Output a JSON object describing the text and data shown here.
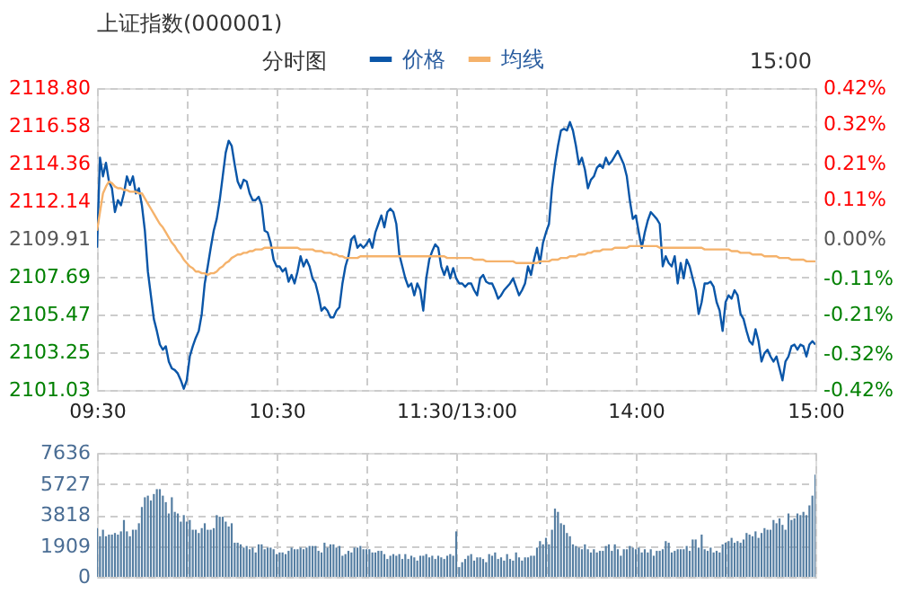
{
  "chart_data": [
    {
      "type": "line",
      "title": "上证指数(000001)",
      "subtitle": "分时图",
      "annotations": [
        "15:00"
      ],
      "legend": "top",
      "grid": true,
      "categories": [
        "09:30",
        null,
        null,
        null,
        null,
        null,
        null,
        null,
        null,
        null,
        null,
        null,
        null,
        null,
        null,
        null,
        null,
        null,
        null,
        null,
        null,
        null,
        null,
        null,
        null,
        null,
        null,
        null,
        null,
        null,
        null,
        null,
        null,
        null,
        null,
        null,
        null,
        null,
        null,
        null,
        null,
        null,
        null,
        null,
        null,
        null,
        null,
        null,
        null,
        null,
        null,
        null,
        null,
        null,
        null,
        null,
        null,
        null,
        null,
        null,
        "10:30",
        null,
        null,
        null,
        null,
        null,
        null,
        null,
        null,
        null,
        null,
        null,
        null,
        null,
        null,
        null,
        null,
        null,
        null,
        null,
        null,
        null,
        null,
        null,
        null,
        null,
        null,
        null,
        null,
        null,
        null,
        null,
        null,
        null,
        null,
        null,
        null,
        null,
        null,
        null,
        null,
        null,
        null,
        null,
        null,
        null,
        null,
        null,
        null,
        null,
        null,
        null,
        null,
        null,
        null,
        null,
        null,
        null,
        null,
        null,
        "11:30/13:00",
        null,
        null,
        null,
        null,
        null,
        null,
        null,
        null,
        null,
        null,
        null,
        null,
        null,
        null,
        null,
        null,
        null,
        null,
        null,
        null,
        null,
        null,
        null,
        null,
        null,
        null,
        null,
        null,
        null,
        null,
        null,
        null,
        null,
        null,
        null,
        null,
        null,
        null,
        null,
        null,
        null,
        null,
        null,
        null,
        null,
        null,
        null,
        null,
        null,
        null,
        null,
        null,
        null,
        null,
        null,
        null,
        null,
        null,
        null,
        "14:00",
        null,
        null,
        null,
        null,
        null,
        null,
        null,
        null,
        null,
        null,
        null,
        null,
        null,
        null,
        null,
        null,
        null,
        null,
        null,
        null,
        null,
        null,
        null,
        null,
        null,
        null,
        null,
        null,
        null,
        null,
        null,
        null,
        null,
        null,
        null,
        null,
        null,
        null,
        null,
        null,
        null,
        null,
        null,
        null,
        null,
        null,
        null,
        null,
        null,
        null,
        null,
        null,
        null,
        null,
        null,
        null,
        null,
        null,
        null,
        "15:00"
      ],
      "ylim": [
        2101.03,
        2118.8
      ],
      "yticks": [
        2101.03,
        2103.25,
        2105.47,
        2107.69,
        2109.91,
        2112.14,
        2114.36,
        2116.58,
        {
          "value": 2118.8,
          "label": "2118.80"
        }
      ],
      "y2lim": [
        -0.42,
        0.42
      ],
      "y2ticks": [
        {
          "value": -0.42,
          "label": "-0.42%"
        },
        {
          "value": -0.32,
          "label": "-0.32%"
        },
        {
          "value": -0.21,
          "label": "-0.21%"
        },
        {
          "value": -0.11,
          "label": "-0.11%"
        },
        {
          "value": 0,
          "label": "0.00%"
        },
        {
          "value": 0.11,
          "label": "0.11%"
        },
        {
          "value": 0.21,
          "label": "0.21%"
        },
        {
          "value": 0.32,
          "label": "0.32%"
        },
        {
          "value": 0.42,
          "label": "0.42%"
        }
      ],
      "series": [
        {
          "name": "价格",
          "color": "#0a56a8",
          "values": [
            2109.4,
            2114.7,
            2113.6,
            2114.4,
            2113.3,
            2112.9,
            2111.5,
            2112.2,
            2111.9,
            2112.6,
            2113.6,
            2113.1,
            2113.6,
            2112.6,
            2112.9,
            2111.9,
            2110.4,
            2108.0,
            2106.6,
            2105.2,
            2104.5,
            2103.7,
            2103.4,
            2103.6,
            2102.7,
            2102.3,
            2102.2,
            2102.0,
            2101.6,
            2101.1,
            2101.6,
            2103.0,
            2103.6,
            2104.1,
            2104.5,
            2105.5,
            2107.3,
            2108.3,
            2109.4,
            2110.4,
            2111.1,
            2112.2,
            2113.6,
            2115.0,
            2115.7,
            2115.4,
            2114.3,
            2113.3,
            2112.9,
            2113.4,
            2113.3,
            2112.6,
            2112.2,
            2112.2,
            2112.4,
            2111.9,
            2110.4,
            2110.3,
            2109.7,
            2108.7,
            2108.3,
            2108.3,
            2108.0,
            2108.2,
            2107.4,
            2107.8,
            2107.3,
            2108.0,
            2108.9,
            2108.3,
            2108.7,
            2108.3,
            2107.6,
            2107.3,
            2106.6,
            2105.7,
            2105.9,
            2105.7,
            2105.3,
            2105.3,
            2105.7,
            2105.9,
            2107.3,
            2108.3,
            2108.9,
            2109.9,
            2110.1,
            2109.4,
            2109.6,
            2109.4,
            2109.6,
            2109.9,
            2109.4,
            2110.3,
            2110.8,
            2111.3,
            2110.6,
            2111.5,
            2111.7,
            2111.5,
            2110.8,
            2109.0,
            2108.3,
            2107.6,
            2107.1,
            2107.3,
            2106.6,
            2107.3,
            2106.9,
            2105.7,
            2107.6,
            2108.7,
            2109.2,
            2109.6,
            2109.4,
            2108.3,
            2107.8,
            2108.3,
            2107.6,
            2108.2,
            2107.6,
            2107.3,
            2107.3,
            2107.1,
            2107.3,
            2107.3,
            2106.9,
            2106.6,
            2107.6,
            2107.8,
            2107.4,
            2107.3,
            2107.3,
            2106.9,
            2106.4,
            2106.6,
            2106.9,
            2107.1,
            2107.3,
            2107.6,
            2107.1,
            2106.6,
            2106.9,
            2107.3,
            2108.3,
            2107.8,
            2108.7,
            2109.4,
            2108.5,
            2109.7,
            2110.3,
            2110.8,
            2112.9,
            2114.3,
            2115.4,
            2116.3,
            2116.4,
            2116.3,
            2116.8,
            2116.3,
            2115.4,
            2114.3,
            2114.7,
            2114.0,
            2112.9,
            2113.4,
            2113.6,
            2114.1,
            2114.3,
            2114.1,
            2114.7,
            2114.3,
            2114.5,
            2114.8,
            2115.1,
            2114.7,
            2114.3,
            2113.6,
            2112.2,
            2111.1,
            2111.3,
            2110.3,
            2109.4,
            2110.3,
            2111.0,
            2111.5,
            2111.3,
            2111.1,
            2110.8,
            2108.3,
            2108.9,
            2108.5,
            2108.3,
            2108.9,
            2107.3,
            2108.5,
            2107.6,
            2108.7,
            2108.3,
            2107.6,
            2106.9,
            2105.5,
            2106.2,
            2107.3,
            2107.3,
            2107.4,
            2107.1,
            2106.2,
            2105.7,
            2104.5,
            2106.2,
            2106.6,
            2106.4,
            2106.9,
            2106.6,
            2105.5,
            2105.2,
            2104.5,
            2103.9,
            2103.7,
            2104.6,
            2103.9,
            2102.7,
            2103.2,
            2103.4,
            2103.0,
            2102.7,
            2103.0,
            2102.3,
            2101.6,
            2102.7,
            2103.0,
            2103.6,
            2103.7,
            2103.4,
            2103.7,
            2103.6,
            2103.0,
            2103.7,
            2103.9,
            2103.7
          ]
        },
        {
          "name": "均线",
          "color": "#f5b26b",
          "values": [
            2110.4,
            2111.5,
            2112.6,
            2113.0,
            2113.3,
            2113.2,
            2113.0,
            2112.9,
            2112.9,
            2112.8,
            2112.8,
            2112.7,
            2112.7,
            2112.7,
            2112.6,
            2112.6,
            2112.3,
            2112.0,
            2111.7,
            2111.4,
            2111.1,
            2110.8,
            2110.6,
            2110.3,
            2110.0,
            2109.7,
            2109.5,
            2109.2,
            2109.0,
            2108.7,
            2108.5,
            2108.3,
            2108.2,
            2108.0,
            2108.0,
            2107.9,
            2107.9,
            2107.8,
            2107.9,
            2107.9,
            2108.0,
            2108.2,
            2108.3,
            2108.5,
            2108.6,
            2108.8,
            2108.9,
            2109.0,
            2109.0,
            2109.1,
            2109.1,
            2109.2,
            2109.2,
            2109.3,
            2109.3,
            2109.3,
            2109.4,
            2109.4,
            2109.4,
            2109.4,
            2109.4,
            2109.4,
            2109.4,
            2109.4,
            2109.4,
            2109.4,
            2109.4,
            2109.4,
            2109.3,
            2109.3,
            2109.3,
            2109.3,
            2109.3,
            2109.2,
            2109.2,
            2109.2,
            2109.1,
            2109.1,
            2109.1,
            2109.0,
            2109.0,
            2108.9,
            2108.9,
            2108.8,
            2108.8,
            2108.8,
            2108.8,
            2108.8,
            2108.9,
            2108.9,
            2108.9,
            2108.9,
            2108.9,
            2108.9,
            2108.9,
            2108.9,
            2108.9,
            2108.9,
            2108.9,
            2108.9,
            2108.9,
            2108.9,
            2108.9,
            2108.9,
            2108.9,
            2108.9,
            2108.9,
            2108.9,
            2108.9,
            2108.9,
            2108.9,
            2108.9,
            2108.9,
            2108.9,
            2108.9,
            2108.9,
            2108.9,
            2108.8,
            2108.8,
            2108.8,
            2108.8,
            2108.8,
            2108.8,
            2108.8,
            2108.8,
            2108.8,
            2108.7,
            2108.7,
            2108.7,
            2108.7,
            2108.6,
            2108.6,
            2108.6,
            2108.6,
            2108.6,
            2108.6,
            2108.6,
            2108.6,
            2108.6,
            2108.6,
            2108.5,
            2108.5,
            2108.5,
            2108.5,
            2108.5,
            2108.5,
            2108.5,
            2108.5,
            2108.6,
            2108.6,
            2108.6,
            2108.6,
            2108.7,
            2108.7,
            2108.7,
            2108.8,
            2108.8,
            2108.8,
            2108.9,
            2108.9,
            2108.9,
            2109.0,
            2109.0,
            2109.0,
            2109.1,
            2109.1,
            2109.2,
            2109.2,
            2109.2,
            2109.3,
            2109.3,
            2109.3,
            2109.3,
            2109.4,
            2109.4,
            2109.4,
            2109.4,
            2109.4,
            2109.5,
            2109.5,
            2109.5,
            2109.5,
            2109.5,
            2109.5,
            2109.5,
            2109.5,
            2109.5,
            2109.5,
            2109.4,
            2109.4,
            2109.4,
            2109.4,
            2109.4,
            2109.4,
            2109.4,
            2109.4,
            2109.4,
            2109.4,
            2109.4,
            2109.4,
            2109.4,
            2109.4,
            2109.4,
            2109.3,
            2109.3,
            2109.3,
            2109.3,
            2109.3,
            2109.3,
            2109.3,
            2109.3,
            2109.3,
            2109.2,
            2109.2,
            2109.2,
            2109.1,
            2109.1,
            2109.1,
            2109.1,
            2109.0,
            2109.0,
            2109.0,
            2109.0,
            2108.9,
            2108.9,
            2108.9,
            2108.9,
            2108.9,
            2108.8,
            2108.8,
            2108.8,
            2108.8,
            2108.7,
            2108.7,
            2108.7,
            2108.7,
            2108.7,
            2108.6,
            2108.6,
            2108.6,
            2108.6
          ]
        }
      ]
    },
    {
      "type": "bar",
      "grid": true,
      "tick_labels": "y",
      "categories": [
        null,
        null,
        null,
        null,
        null,
        null,
        null,
        null,
        null,
        null,
        null,
        null,
        null,
        null,
        null,
        null,
        null,
        null,
        null,
        null,
        null,
        null,
        null,
        null,
        null,
        null,
        null,
        null,
        null,
        null,
        null,
        null,
        null,
        null,
        null,
        null,
        null,
        null,
        null,
        null,
        null,
        null,
        null,
        null,
        null,
        null,
        null,
        null,
        null,
        null,
        null,
        null,
        null,
        null,
        null,
        null,
        null,
        null,
        null,
        null,
        null,
        null,
        null,
        null,
        null,
        null,
        null,
        null,
        null,
        null,
        null,
        null,
        null,
        null,
        null,
        null,
        null,
        null,
        null,
        null,
        null,
        null,
        null,
        null,
        null,
        null,
        null,
        null,
        null,
        null,
        null,
        null,
        null,
        null,
        null,
        null,
        null,
        null,
        null,
        null,
        null,
        null,
        null,
        null,
        null,
        null,
        null,
        null,
        null,
        null,
        null,
        null,
        null,
        null,
        null,
        null,
        null,
        null,
        null,
        null,
        null,
        null,
        null,
        null,
        null,
        null,
        null,
        null,
        null,
        null,
        null,
        null,
        null,
        null,
        null,
        null,
        null,
        null,
        null,
        null,
        null,
        null,
        null,
        null,
        null,
        null,
        null,
        null,
        null,
        null,
        null,
        null,
        null,
        null,
        null,
        null,
        null,
        null,
        null,
        null,
        null,
        null,
        null,
        null,
        null,
        null,
        null,
        null,
        null,
        null,
        null,
        null,
        null,
        null,
        null,
        null,
        null,
        null,
        null,
        null,
        null,
        null,
        null,
        null,
        null,
        null,
        null,
        null,
        null,
        null,
        null,
        null,
        null,
        null,
        null,
        null,
        null,
        null,
        null,
        null,
        null,
        null,
        null,
        null,
        null,
        null,
        null,
        null,
        null,
        null,
        null,
        null,
        null,
        null,
        null,
        null,
        null,
        null,
        null,
        null,
        null,
        null,
        null,
        null,
        null,
        null,
        null,
        null,
        null,
        null,
        null,
        null,
        null,
        null,
        null,
        null,
        null,
        null,
        null,
        null,
        null
      ],
      "ylim": [
        0,
        7636
      ],
      "yticks": [
        0,
        1909,
        3818,
        5727,
        7636
      ],
      "series": [
        {
          "color": "#557ea2",
          "values": [
            3000,
            2500,
            2900,
            2500,
            2600,
            2600,
            2700,
            2600,
            2800,
            3500,
            2800,
            2500,
            2900,
            2900,
            3300,
            4300,
            4900,
            5000,
            4700,
            5100,
            5400,
            5400,
            5000,
            4600,
            3900,
            4900,
            4000,
            3900,
            3400,
            3800,
            3400,
            3500,
            2900,
            2900,
            2700,
            3000,
            3300,
            2900,
            2900,
            3000,
            3800,
            3700,
            3700,
            3400,
            3100,
            3300,
            2100,
            2100,
            2000,
            1800,
            1900,
            1700,
            1800,
            1500,
            2000,
            2000,
            1700,
            1800,
            1800,
            1700,
            1400,
            1500,
            1500,
            1400,
            1600,
            1800,
            1700,
            1700,
            1800,
            1700,
            1800,
            1900,
            1900,
            1900,
            1600,
            1500,
            2100,
            1800,
            2000,
            2000,
            1800,
            1900,
            1300,
            1400,
            1600,
            1500,
            1800,
            1800,
            1900,
            1700,
            1700,
            1700,
            1500,
            1500,
            1600,
            1600,
            1400,
            1100,
            1300,
            1400,
            1300,
            1400,
            1100,
            1400,
            1100,
            1300,
            1200,
            1000,
            1300,
            1300,
            1400,
            1200,
            1300,
            1100,
            1300,
            1200,
            1100,
            1300,
            1400,
            1300,
            2800,
            600,
            900,
            1100,
            1300,
            1400,
            1000,
            1200,
            1200,
            1100,
            900,
            1400,
            1300,
            1500,
            1100,
            1200,
            1000,
            1400,
            1100,
            1000,
            1500,
            1200,
            1000,
            1200,
            1200,
            1300,
            1300,
            1800,
            2200,
            2000,
            2400,
            2000,
            2900,
            4200,
            4000,
            3300,
            3200,
            2700,
            2500,
            2000,
            1900,
            1800,
            1700,
            2000,
            1700,
            1500,
            1700,
            1500,
            1600,
            1600,
            1900,
            2000,
            1600,
            2000,
            1700,
            1300,
            1700,
            1700,
            1900,
            1800,
            1700,
            1800,
            1500,
            1700,
            1500,
            1700,
            1300,
            1600,
            1600,
            1700,
            2200,
            2100,
            1500,
            1600,
            1700,
            1700,
            1700,
            1900,
            1600,
            2300,
            2300,
            1800,
            2600,
            1700,
            1600,
            1800,
            1500,
            1600,
            1500,
            2000,
            2100,
            2200,
            2400,
            2100,
            2200,
            2100,
            2300,
            2700,
            2600,
            2500,
            2800,
            2400,
            2700,
            3000,
            2900,
            2900,
            3500,
            3300,
            3600,
            3200,
            2900,
            3900,
            3500,
            3600,
            3900,
            3800,
            4000,
            3800,
            4400,
            5000,
            6300
          ]
        }
      ]
    }
  ]
}
